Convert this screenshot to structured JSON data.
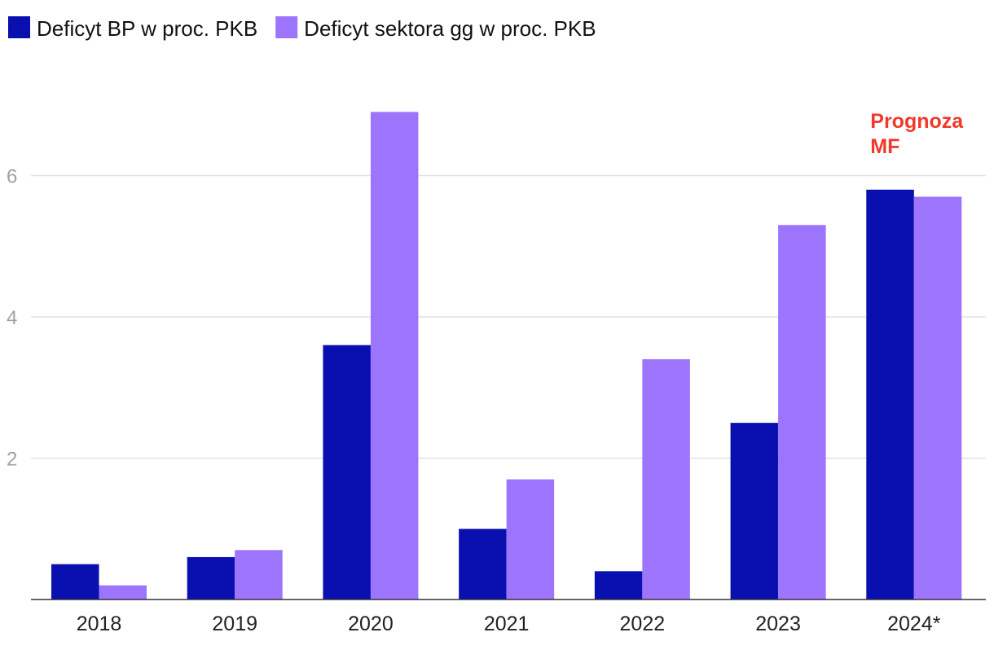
{
  "chart_data": {
    "type": "bar",
    "title": "",
    "xlabel": "",
    "ylabel": "",
    "categories": [
      "2018",
      "2019",
      "2020",
      "2021",
      "2022",
      "2023",
      "2024*"
    ],
    "series": [
      {
        "name": "Deficyt BP w proc. PKB",
        "color": "#0a10b0",
        "values": [
          0.5,
          0.6,
          3.6,
          1.0,
          0.4,
          2.5,
          5.8
        ]
      },
      {
        "name": "Deficyt sektora gg w proc. PKB",
        "color": "#9d75fd",
        "values": [
          0.2,
          0.7,
          6.9,
          1.7,
          3.4,
          5.3,
          5.7
        ]
      }
    ],
    "ylim": [
      0,
      7.3
    ],
    "yticks": [
      2,
      4,
      6
    ],
    "grid": true,
    "legend_position": "top-left",
    "annotations": [
      {
        "lines": [
          "Prognoza",
          "MF"
        ],
        "category": "2024*",
        "color": "#f0392b"
      }
    ]
  }
}
